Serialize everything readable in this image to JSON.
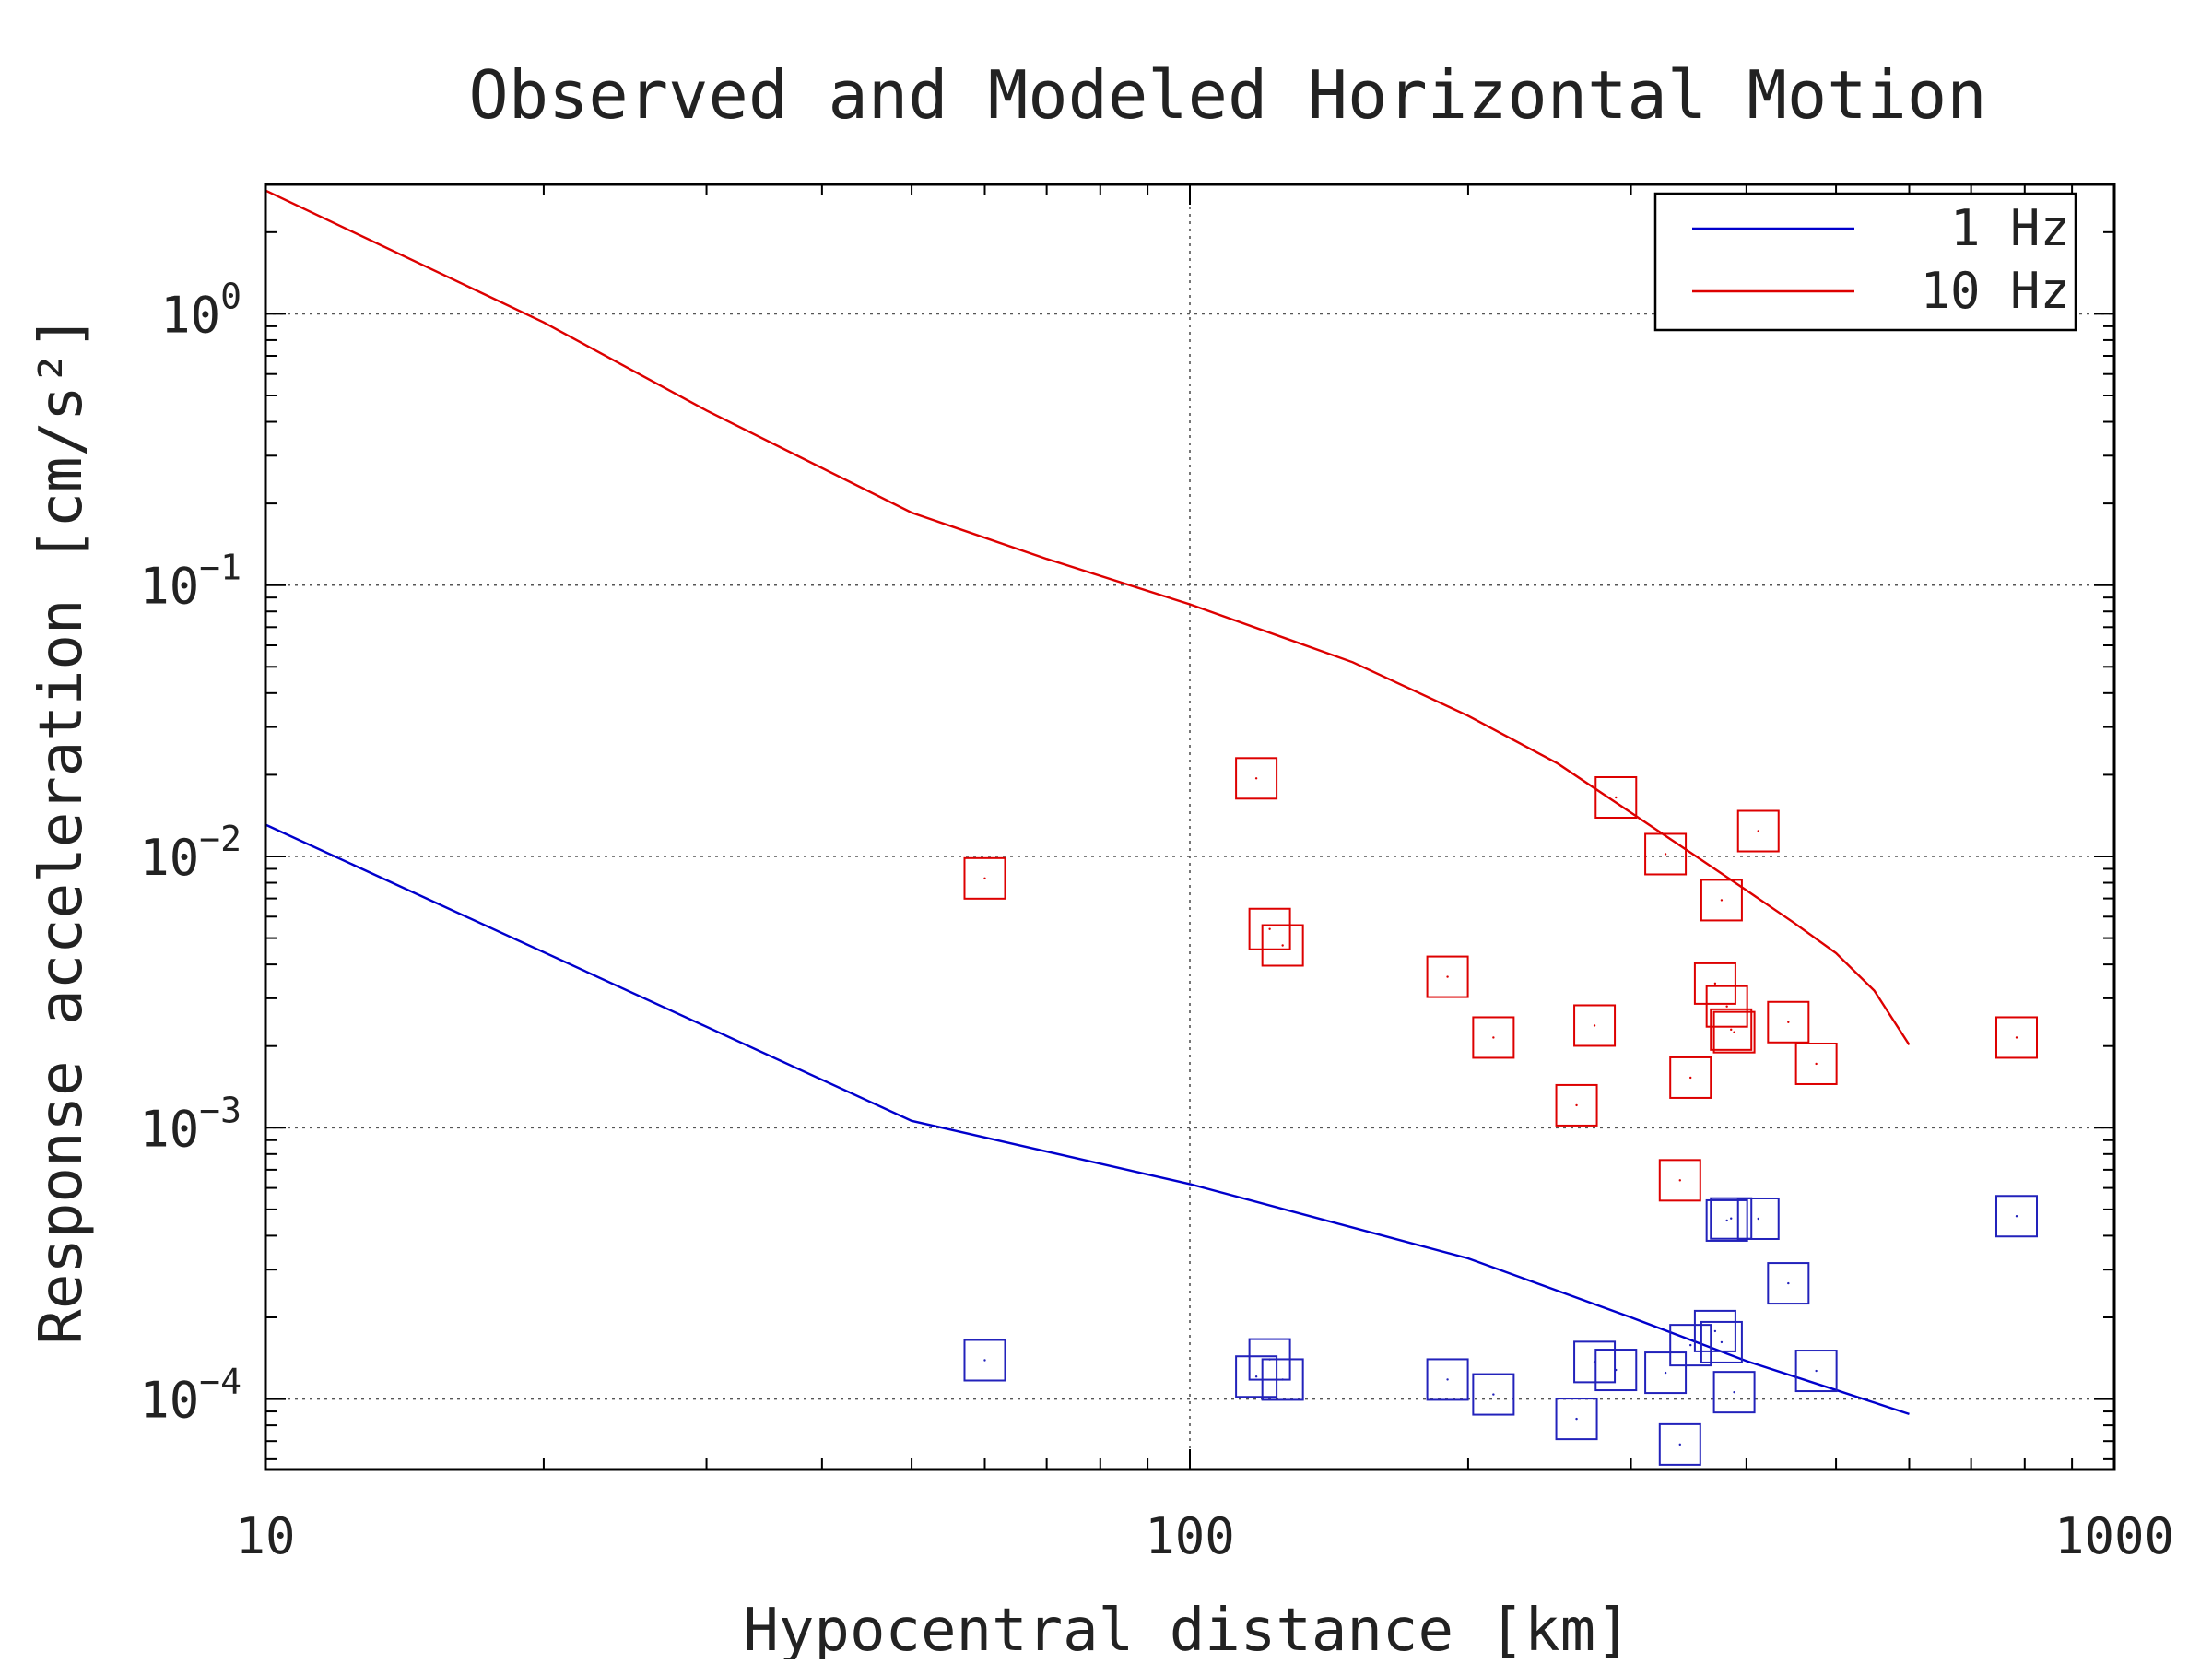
{
  "chart_data": {
    "type": "scatter",
    "title": "Observed and Modeled Horizontal Motion",
    "xlabel": "Hypocentral distance [km]",
    "ylabel": "Response acceleration [cm/s²]",
    "x_scale": "log",
    "y_scale": "log",
    "xlim": [
      10,
      1000
    ],
    "ylim": [
      5.5e-05,
      3.0
    ],
    "x_ticks": [
      {
        "value": 10,
        "label": "10"
      },
      {
        "value": 100,
        "label": "100"
      },
      {
        "value": 1000,
        "label": "1000"
      }
    ],
    "y_ticks": [
      {
        "value": 1,
        "exponent": "0"
      },
      {
        "value": 0.1,
        "exponent": "−1"
      },
      {
        "value": 0.01,
        "exponent": "−2"
      },
      {
        "value": 0.001,
        "exponent": "−3"
      },
      {
        "value": 0.0001,
        "exponent": "−4"
      }
    ],
    "y_tick_base": "10",
    "grid": true,
    "legend_position": "top-right",
    "series": [
      {
        "name": "1 Hz",
        "kind": "line",
        "color": "#0000cc",
        "x": [
          10,
          50,
          100,
          200,
          300,
          400,
          500,
          600
        ],
        "y": [
          0.0131,
          0.00106,
          0.00062,
          0.00033,
          0.0002,
          0.000138,
          0.000108,
          8.8e-05
        ]
      },
      {
        "name": "10 Hz",
        "kind": "line",
        "color": "#dd0000",
        "x": [
          10,
          20,
          30,
          50,
          70,
          100,
          150,
          200,
          250,
          300,
          350,
          400,
          450,
          500,
          550,
          600
        ],
        "y": [
          2.85,
          0.93,
          0.44,
          0.185,
          0.125,
          0.085,
          0.052,
          0.033,
          0.022,
          0.0145,
          0.0102,
          0.0075,
          0.0057,
          0.0044,
          0.0032,
          0.00202
        ]
      },
      {
        "name": "",
        "kind": "markers",
        "marker": "square",
        "color": "#dd0000",
        "x": [
          60,
          118,
          122,
          126,
          190,
          213,
          262,
          274,
          289,
          327,
          339,
          348,
          370,
          376,
          381,
          385,
          388,
          412,
          444,
          476,
          784
        ],
        "y": [
          0.0083,
          0.0194,
          0.0054,
          0.0047,
          0.0036,
          0.00215,
          0.00121,
          0.00238,
          0.0165,
          0.0102,
          0.00064,
          0.00153,
          0.0034,
          0.0069,
          0.0028,
          0.0023,
          0.00225,
          0.0124,
          0.00245,
          0.00172,
          0.00215
        ]
      },
      {
        "name": "",
        "kind": "markers",
        "marker": "square",
        "color": "#2222bb",
        "x": [
          60,
          118,
          122,
          126,
          190,
          213,
          262,
          274,
          289,
          327,
          339,
          348,
          370,
          376,
          381,
          385,
          388,
          412,
          444,
          476,
          784
        ],
        "y": [
          0.000139,
          0.000121,
          0.00014,
          0.000118,
          0.000118,
          0.000104,
          8.45e-05,
          0.000137,
          0.000128,
          0.000125,
          6.8e-05,
          0.000158,
          0.000178,
          0.000162,
          0.000455,
          0.000463,
          0.000106,
          0.000462,
          0.000267,
          0.000127,
          0.000472
        ]
      }
    ]
  }
}
